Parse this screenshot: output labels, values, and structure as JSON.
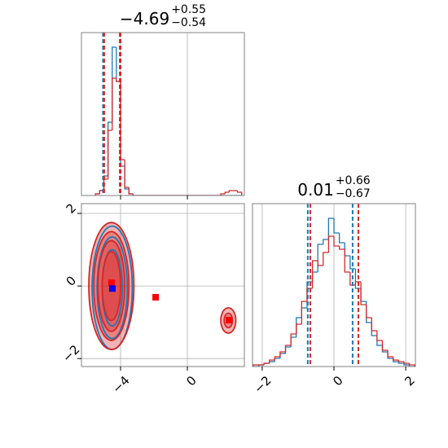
{
  "chart_data": [
    {
      "type": "histogram",
      "title": {
        "value": "−4.69",
        "upper": "+0.55",
        "lower": "−0.54"
      },
      "bins": [
        -5.5,
        -5.25,
        -5,
        -4.75,
        -4.5,
        -4.25,
        -4,
        -3.75,
        -3.5,
        -3.25,
        -3,
        -2.75,
        -2.5,
        -2.25,
        -2,
        -1.75,
        -1.5,
        -1.25,
        -1,
        -0.75,
        -0.5,
        -0.25,
        0,
        0.25,
        0.5,
        0.75,
        1,
        1.25,
        1.5,
        1.75,
        2,
        2.25,
        2.5,
        2.75,
        3,
        3.25
      ],
      "series": [
        {
          "color": "#1f77b4",
          "values": [
            1,
            3,
            12,
            45,
            91,
            70,
            18,
            4,
            1,
            0,
            0,
            0,
            0,
            0,
            0,
            0,
            0,
            0,
            0,
            0,
            0,
            0,
            0,
            0,
            0,
            0,
            0,
            0,
            0,
            0,
            0,
            0,
            0,
            0,
            0
          ],
          "quantiles": [
            -5.05,
            -4.05
          ]
        },
        {
          "color": "#d62728",
          "values": [
            1,
            3,
            10,
            40,
            72,
            70,
            22,
            5,
            1,
            0,
            0,
            0,
            0,
            0,
            0,
            0,
            0,
            0,
            0,
            0,
            0,
            0,
            0,
            0,
            0,
            0,
            0,
            0,
            0,
            0,
            1,
            2,
            3,
            3,
            2
          ],
          "quantiles": [
            -4.98,
            -4.0
          ]
        }
      ],
      "xlim": [
        -6.34,
        3.41
      ],
      "ylim": [
        0,
        100
      ],
      "xticks": [
        -4,
        0
      ],
      "show_xtick_labels": false,
      "grid": true
    },
    {
      "type": "contour",
      "xlim": [
        -6.34,
        3.41
      ],
      "ylim": [
        -2.22,
        2.27
      ],
      "xticks": [
        {
          "value": -4,
          "label": "−4"
        },
        0
      ],
      "yticks": [
        2,
        0,
        {
          "value": -2,
          "label": "−2"
        }
      ],
      "show_xtick_labels": true,
      "grid": true,
      "series": [
        {
          "color": "#d62728",
          "filled": true,
          "levels": [
            {
              "cx": -4.55,
              "cy": 0.0,
              "rx": 1.35,
              "ry": 1.75
            },
            {
              "cx": -4.55,
              "cy": 0.0,
              "rx": 1.05,
              "ry": 1.5
            },
            {
              "cx": -4.55,
              "cy": 0.0,
              "rx": 0.8,
              "ry": 1.25
            },
            {
              "cx": -4.55,
              "cy": 0.0,
              "rx": 0.55,
              "ry": 0.95
            },
            {
              "cx": 2.45,
              "cy": -0.95,
              "rx": 0.45,
              "ry": 0.35
            },
            {
              "cx": 2.45,
              "cy": -0.95,
              "rx": 0.25,
              "ry": 0.2
            }
          ]
        },
        {
          "color": "#1f77b4",
          "filled": false,
          "levels": [
            {
              "cx": -4.5,
              "cy": -0.05,
              "rx": 1.2,
              "ry": 1.7
            },
            {
              "cx": -4.5,
              "cy": -0.05,
              "rx": 0.9,
              "ry": 1.4
            },
            {
              "cx": -4.5,
              "cy": -0.05,
              "rx": 0.6,
              "ry": 1.05
            }
          ]
        }
      ],
      "markers": [
        {
          "color": "#ff0000",
          "x": -4.54,
          "y": 0.09
        },
        {
          "color": "#0000ff",
          "x": -4.49,
          "y": -0.07
        },
        {
          "color": "#ff0000",
          "x": -1.9,
          "y": -0.31
        },
        {
          "color": "#ff0000",
          "x": 2.49,
          "y": -0.94
        }
      ]
    },
    {
      "type": "histogram",
      "title": {
        "value": "0.01",
        "upper": "+0.66",
        "lower": "−0.67"
      },
      "bins": [
        -2.25,
        -2.1,
        -1.95,
        -1.8,
        -1.65,
        -1.5,
        -1.35,
        -1.2,
        -1.05,
        -0.9,
        -0.75,
        -0.6,
        -0.45,
        -0.3,
        -0.15,
        0,
        0.15,
        0.3,
        0.45,
        0.6,
        0.75,
        0.9,
        1.05,
        1.2,
        1.35,
        1.5,
        1.65,
        1.8,
        1.95,
        2.1,
        2.25
      ],
      "series": [
        {
          "color": "#1f77b4",
          "values": [
            0,
            1,
            2,
            3,
            5,
            8,
            12,
            18,
            30,
            36,
            52,
            58,
            75,
            78,
            91,
            82,
            76,
            68,
            60,
            48,
            40,
            27,
            19,
            13,
            9,
            5,
            3,
            2,
            1,
            0
          ],
          "quantiles": [
            -0.73,
            0.52
          ]
        },
        {
          "color": "#d62728",
          "values": [
            1,
            1,
            2,
            4,
            6,
            9,
            13,
            20,
            26,
            40,
            48,
            65,
            62,
            70,
            80,
            74,
            72,
            58,
            50,
            52,
            38,
            30,
            22,
            16,
            10,
            6,
            4,
            3,
            2,
            1
          ],
          "quantiles": [
            -0.66,
            0.68
          ]
        }
      ],
      "xlim": [
        -2.27,
        2.27
      ],
      "ylim": [
        0,
        100
      ],
      "xticks": [
        {
          "value": -2,
          "label": "−2"
        },
        0,
        2
      ],
      "show_xtick_labels": true,
      "grid": true
    }
  ]
}
